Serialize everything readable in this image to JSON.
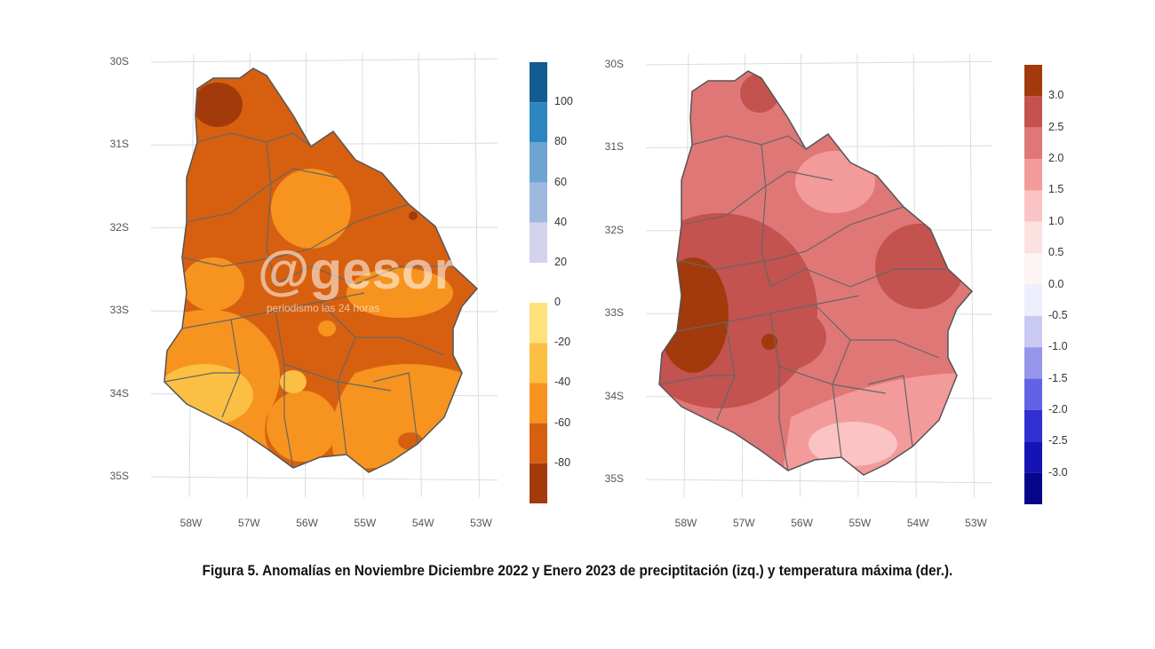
{
  "caption": "Figura 5. Anomalías en Noviembre Diciembre 2022 y Enero 2023 de preciptitación (izq.) y temperatura máxima (der.).",
  "watermark": {
    "logo": "@gesor",
    "tagline": "periodismo las 24 horas"
  },
  "lat_labels": [
    "30S",
    "31S",
    "32S",
    "33S",
    "34S",
    "35S"
  ],
  "lon_labels": [
    "58W",
    "57W",
    "56W",
    "55W",
    "54W",
    "53W"
  ],
  "maps": [
    {
      "name": "precipitation-anomaly",
      "legend": {
        "ticks": [
          "100",
          "80",
          "60",
          "40",
          "20",
          "0",
          "-20",
          "-40",
          "-60",
          "-80"
        ],
        "bins": [
          {
            "from": 100,
            "to": 120,
            "color": "#125c91"
          },
          {
            "from": 80,
            "to": 100,
            "color": "#2d86c0"
          },
          {
            "from": 60,
            "to": 80,
            "color": "#6ea4d2"
          },
          {
            "from": 40,
            "to": 60,
            "color": "#9fb9de"
          },
          {
            "from": 20,
            "to": 40,
            "color": "#d3d3ee"
          },
          {
            "from": -20,
            "to": 0,
            "color": "#fde27c"
          },
          {
            "from": -40,
            "to": -20,
            "color": "#fbbf43"
          },
          {
            "from": -60,
            "to": -40,
            "color": "#f7931f"
          },
          {
            "from": -80,
            "to": -60,
            "color": "#d6600f"
          },
          {
            "from": -100,
            "to": -80,
            "color": "#a33a0c"
          }
        ]
      }
    },
    {
      "name": "max-temperature-anomaly",
      "legend": {
        "ticks": [
          "3.0",
          "2.5",
          "2.0",
          "1.5",
          "1.0",
          "0.5",
          "0.0",
          "-0.5",
          "-1.0",
          "-1.5",
          "-2.0",
          "-2.5",
          "-3.0"
        ],
        "bins": [
          {
            "from": 3.0,
            "to": 3.5,
            "color": "#a33a0c"
          },
          {
            "from": 2.5,
            "to": 3.0,
            "color": "#c4524f"
          },
          {
            "from": 2.0,
            "to": 2.5,
            "color": "#df7777"
          },
          {
            "from": 1.5,
            "to": 2.0,
            "color": "#f39a9a"
          },
          {
            "from": 1.0,
            "to": 1.5,
            "color": "#fbc3c3"
          },
          {
            "from": 0.5,
            "to": 1.0,
            "color": "#fde0e0"
          },
          {
            "from": 0.0,
            "to": 0.5,
            "color": "#fdf4f4"
          },
          {
            "from": -0.5,
            "to": 0.0,
            "color": "#eeeefc"
          },
          {
            "from": -1.0,
            "to": -0.5,
            "color": "#c9c9f4"
          },
          {
            "from": -1.5,
            "to": -1.0,
            "color": "#9595ec"
          },
          {
            "from": -2.0,
            "to": -1.5,
            "color": "#6262e6"
          },
          {
            "from": -2.5,
            "to": -2.0,
            "color": "#2f2fd2"
          },
          {
            "from": -3.0,
            "to": -2.5,
            "color": "#1414b4"
          },
          {
            "from": -3.5,
            "to": -3.0,
            "color": "#06068a"
          }
        ]
      }
    }
  ]
}
